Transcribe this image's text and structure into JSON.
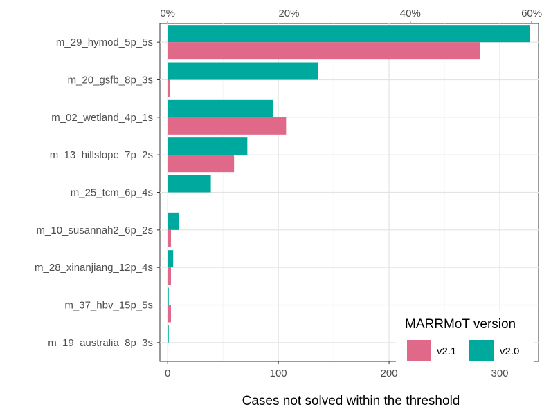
{
  "chart_data": {
    "type": "bar",
    "orientation": "horizontal",
    "categories": [
      "m_29_hymod_5p_5s",
      "m_20_gsfb_8p_3s",
      "m_02_wetland_4p_1s",
      "m_13_hillslope_7p_2s",
      "m_25_tcm_6p_4s",
      "m_10_susannah2_6p_2s",
      "m_28_xinanjiang_12p_4s",
      "m_37_hbv_15p_5s",
      "m_19_australia_8p_3s"
    ],
    "series": [
      {
        "name": "v2.0",
        "color": "#00a99d",
        "values": [
          327,
          136,
          95,
          72,
          39,
          10,
          5,
          1,
          1
        ]
      },
      {
        "name": "v2.1",
        "color": "#e0698a",
        "values": [
          282,
          2,
          107,
          60,
          0,
          3,
          3,
          3,
          0
        ]
      }
    ],
    "xlabel": "Cases not solved within the threshold",
    "xlim": [
      -7,
      335
    ],
    "x_ticks": [
      0,
      100,
      200,
      300
    ],
    "x_tick_labels": [
      "0",
      "100",
      "200",
      "300"
    ],
    "secondary_x_ticks": [
      0,
      20,
      40,
      60
    ],
    "secondary_x_tick_labels": [
      "0%",
      "20%",
      "40%",
      "60%"
    ],
    "legend": {
      "title": "MARRMoT version",
      "entries": [
        {
          "label": "v2.1",
          "color": "#e0698a"
        },
        {
          "label": "v2.0",
          "color": "#00a99d"
        }
      ],
      "position": "bottom-right"
    },
    "grid": true
  }
}
